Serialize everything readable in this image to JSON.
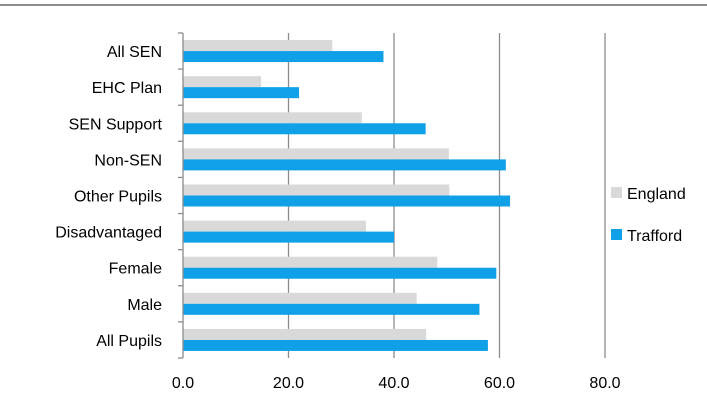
{
  "chart_data": {
    "type": "bar",
    "orientation": "horizontal",
    "categories": [
      "All SEN",
      "EHC Plan",
      "SEN Support",
      "Non-SEN",
      "Other Pupils",
      "Disadvantaged",
      "Female",
      "Male",
      "All Pupils"
    ],
    "series": [
      {
        "name": "England",
        "color": "#d9d9d9",
        "values": [
          28.3,
          14.8,
          33.9,
          50.4,
          50.5,
          34.7,
          48.2,
          44.3,
          46.1
        ]
      },
      {
        "name": "Trafford",
        "color": "#0fa0e8",
        "values": [
          38.0,
          22.0,
          46.0,
          61.2,
          62.0,
          40.0,
          59.4,
          56.2,
          57.8
        ]
      }
    ],
    "xticks": [
      "0.0",
      "20.0",
      "40.0",
      "60.0",
      "80.0"
    ],
    "xlim": [
      0,
      80
    ],
    "grid": true,
    "legend": {
      "position": "right",
      "entries": [
        "England",
        "Trafford"
      ]
    }
  }
}
